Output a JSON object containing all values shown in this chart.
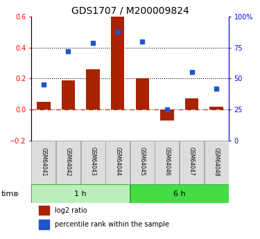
{
  "title": "GDS1707 / M200009824",
  "samples": [
    "GSM64041",
    "GSM64042",
    "GSM64043",
    "GSM64044",
    "GSM64045",
    "GSM64046",
    "GSM64047",
    "GSM64048"
  ],
  "log2_ratio": [
    0.05,
    0.19,
    0.26,
    0.6,
    0.2,
    -0.07,
    0.07,
    0.02
  ],
  "percentile_rank": [
    45,
    72,
    79,
    88,
    80,
    25,
    55,
    42
  ],
  "groups": [
    {
      "label": "1 h",
      "start": 0,
      "end": 4,
      "color": "#bbeebb"
    },
    {
      "label": "6 h",
      "start": 4,
      "end": 8,
      "color": "#44dd44"
    }
  ],
  "bar_color": "#aa2200",
  "dot_color": "#2255cc",
  "left_ylim": [
    -0.2,
    0.6
  ],
  "right_ylim": [
    0,
    100
  ],
  "left_yticks": [
    -0.2,
    0.0,
    0.2,
    0.4,
    0.6
  ],
  "right_yticks": [
    0,
    25,
    50,
    75,
    100
  ],
  "right_yticklabels": [
    "0",
    "25",
    "50",
    "75",
    "100%"
  ],
  "dotted_lines": [
    0.2,
    0.4
  ],
  "bar_width": 0.55,
  "legend_log2": "log2 ratio",
  "legend_pct": "percentile rank within the sample",
  "time_label": "time",
  "background_color": "#ffffff",
  "label_bg": "#dddddd",
  "label_border": "#aaaaaa"
}
